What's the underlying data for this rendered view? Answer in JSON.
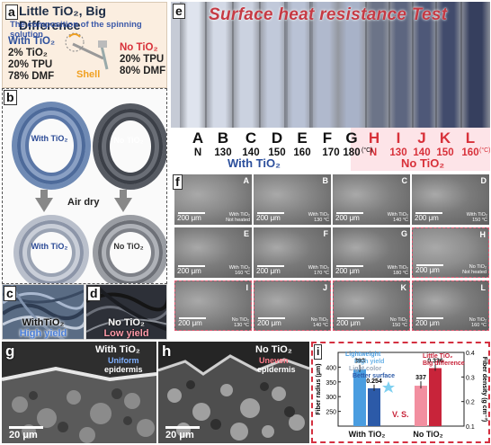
{
  "panel_a": {
    "label": "a",
    "title": "Little TiO₂, Big Difference",
    "subtitle": "The composition of the spinning solution",
    "with": {
      "head": "With TiO₂",
      "lines": [
        "2% TiO₂",
        "20% TPU",
        "78% DMF"
      ]
    },
    "without": {
      "head": "No TiO₂",
      "lines": [
        "20% TPU",
        "80% DMF"
      ]
    },
    "shell": "Shell"
  },
  "panel_b": {
    "label": "b",
    "with_label": "With TiO₂",
    "no_label": "No TiO₂",
    "air_dry": "Air dry"
  },
  "panel_c": {
    "label": "c",
    "caption1": "WithTiO₂",
    "caption2": "High yield"
  },
  "panel_d": {
    "label": "d",
    "caption1": "No TiO₂",
    "caption2": "Low yield"
  },
  "panel_e": {
    "label": "e",
    "title": "Surface heat resistance Test",
    "fibers": [
      {
        "letter": "A",
        "temp": "N",
        "group": "with"
      },
      {
        "letter": "B",
        "temp": "130",
        "group": "with"
      },
      {
        "letter": "C",
        "temp": "140",
        "group": "with"
      },
      {
        "letter": "D",
        "temp": "150",
        "group": "with"
      },
      {
        "letter": "E",
        "temp": "160",
        "group": "with"
      },
      {
        "letter": "F",
        "temp": "170",
        "group": "with"
      },
      {
        "letter": "G",
        "temp": "180",
        "group": "with"
      },
      {
        "letter": "H",
        "temp": "N",
        "group": "no"
      },
      {
        "letter": "I",
        "temp": "130",
        "group": "no"
      },
      {
        "letter": "J",
        "temp": "140",
        "group": "no"
      },
      {
        "letter": "K",
        "temp": "150",
        "group": "no"
      },
      {
        "letter": "L",
        "temp": "160",
        "group": "no"
      }
    ],
    "unit": "(°C)",
    "with_label": "With TiO₂",
    "no_label": "No TiO₂"
  },
  "panel_f": {
    "label": "f",
    "scale": "200 μm",
    "images": [
      {
        "letter": "A",
        "cond": [
          "With TiO₂",
          "Not heated"
        ],
        "pink": false
      },
      {
        "letter": "B",
        "cond": [
          "With TiO₂",
          "130 °C"
        ],
        "pink": false
      },
      {
        "letter": "C",
        "cond": [
          "With TiO₂",
          "140 °C"
        ],
        "pink": false
      },
      {
        "letter": "D",
        "cond": [
          "With TiO₂",
          "150 °C"
        ],
        "pink": false
      },
      {
        "letter": "E",
        "cond": [
          "With TiO₂",
          "160 °C"
        ],
        "pink": false
      },
      {
        "letter": "F",
        "cond": [
          "With TiO₂",
          "170 °C"
        ],
        "pink": false
      },
      {
        "letter": "G",
        "cond": [
          "With TiO₂",
          "180 °C"
        ],
        "pink": false
      },
      {
        "letter": "H",
        "cond": [
          "No TiO₂",
          "Not heated"
        ],
        "pink": true
      },
      {
        "letter": "I",
        "cond": [
          "No TiO₂",
          "130 °C"
        ],
        "pink": true
      },
      {
        "letter": "J",
        "cond": [
          "No TiO₂",
          "140 °C"
        ],
        "pink": true
      },
      {
        "letter": "K",
        "cond": [
          "No TiO₂",
          "150 °C"
        ],
        "pink": true
      },
      {
        "letter": "L",
        "cond": [
          "No TiO₂",
          "160 °C"
        ],
        "pink": true
      }
    ]
  },
  "panel_g": {
    "label": "g",
    "title": "With TiO₂",
    "sub1": "Uniform",
    "sub2": "epidermis",
    "scale": "20 μm",
    "sub1_color": "#7fb0ff"
  },
  "panel_h": {
    "label": "h",
    "title": "No TiO₂",
    "sub1": "Uneven",
    "sub2": "epidermis",
    "scale": "20 μm",
    "sub1_color": "#ff7b8a"
  },
  "panel_i": {
    "label": "i",
    "notes_with": [
      "Lightweight",
      "High yield",
      "Light color",
      "Better surface"
    ],
    "notes_no": [
      "Little TiO₂",
      "Big difference"
    ],
    "vs": "V. S.",
    "chart_data": {
      "type": "bar",
      "categories": [
        "With TiO₂",
        "No TiO₂"
      ],
      "series": [
        {
          "axis": "left",
          "values": [
            393,
            337
          ]
        },
        {
          "axis": "right",
          "values": [
            0.254,
            0.336
          ]
        }
      ],
      "data_labels": [
        [
          "393",
          "0.254"
        ],
        [
          "337",
          "0.336"
        ]
      ],
      "ylabel_left": "Fiber radius (μm)",
      "ylabel_right": "Fiber density (g cm⁻³)",
      "ylim_left": [
        200,
        450
      ],
      "ylim_right": [
        0.1,
        0.4
      ],
      "yticks_left": [
        "250",
        "300",
        "350",
        "400"
      ],
      "yticks_right": [
        "0.1",
        "0.2",
        "0.3",
        "0.4"
      ],
      "colors": {
        "with_radius": "#4a9de0",
        "with_density": "#2c5aa8",
        "no_radius": "#f28fa0",
        "no_density": "#c8243a"
      }
    }
  }
}
